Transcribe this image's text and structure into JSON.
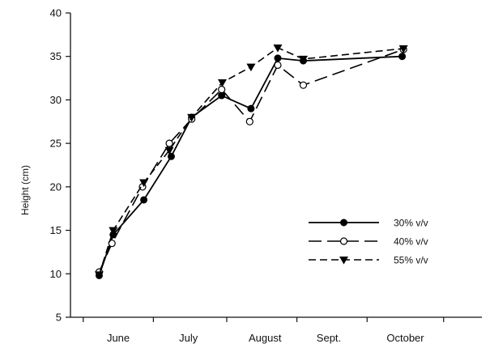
{
  "chart_data": {
    "type": "line",
    "title": "",
    "xlabel": "",
    "ylabel": "Height (cm)",
    "ylim": [
      5,
      40
    ],
    "yticks": [
      5,
      10,
      15,
      20,
      25,
      30,
      35,
      40
    ],
    "xlim": [
      0.45,
      6.9
    ],
    "x_tick_labels": [
      {
        "label": "June",
        "x": 1.2
      },
      {
        "label": "July",
        "x": 2.3
      },
      {
        "label": "August",
        "x": 3.5
      },
      {
        "label": "Sept.",
        "x": 4.5
      },
      {
        "label": "October",
        "x": 5.7
      }
    ],
    "grid": false,
    "legend_position": "lower-right",
    "series": [
      {
        "name": "30% v/v",
        "color": "#000000",
        "line_style": "solid",
        "marker": "filled-circle",
        "points": [
          {
            "x": 0.9,
            "y": 9.8
          },
          {
            "x": 1.12,
            "y": 14.5
          },
          {
            "x": 1.6,
            "y": 18.5
          },
          {
            "x": 2.03,
            "y": 23.5
          },
          {
            "x": 2.35,
            "y": 28.0
          },
          {
            "x": 2.82,
            "y": 30.5
          },
          {
            "x": 3.28,
            "y": 29.0
          },
          {
            "x": 3.7,
            "y": 34.8
          },
          {
            "x": 4.1,
            "y": 34.5
          },
          {
            "x": 5.65,
            "y": 35.0
          }
        ]
      },
      {
        "name": "40% v/v",
        "color": "#000000",
        "line_style": "long-dash",
        "marker": "open-circle",
        "points": [
          {
            "x": 0.9,
            "y": 10.2
          },
          {
            "x": 1.1,
            "y": 13.5
          },
          {
            "x": 1.58,
            "y": 20.0
          },
          {
            "x": 2.0,
            "y": 25.0
          },
          {
            "x": 2.35,
            "y": 27.8
          },
          {
            "x": 2.82,
            "y": 31.2
          },
          {
            "x": 3.26,
            "y": 27.5
          },
          {
            "x": 3.7,
            "y": 34.0
          },
          {
            "x": 4.1,
            "y": 31.7
          },
          {
            "x": 5.67,
            "y": 35.8
          }
        ]
      },
      {
        "name": "55% v/v",
        "color": "#000000",
        "line_style": "short-dash",
        "marker": "filled-triangle-down",
        "points": [
          {
            "x": 0.9,
            "y": 9.9
          },
          {
            "x": 1.12,
            "y": 15.0
          },
          {
            "x": 1.6,
            "y": 20.5
          },
          {
            "x": 2.0,
            "y": 24.2
          },
          {
            "x": 2.35,
            "y": 28.0
          },
          {
            "x": 2.83,
            "y": 32.0
          },
          {
            "x": 3.28,
            "y": 33.8
          },
          {
            "x": 3.7,
            "y": 36.0
          },
          {
            "x": 4.1,
            "y": 34.7
          },
          {
            "x": 5.67,
            "y": 35.9
          }
        ]
      }
    ]
  }
}
